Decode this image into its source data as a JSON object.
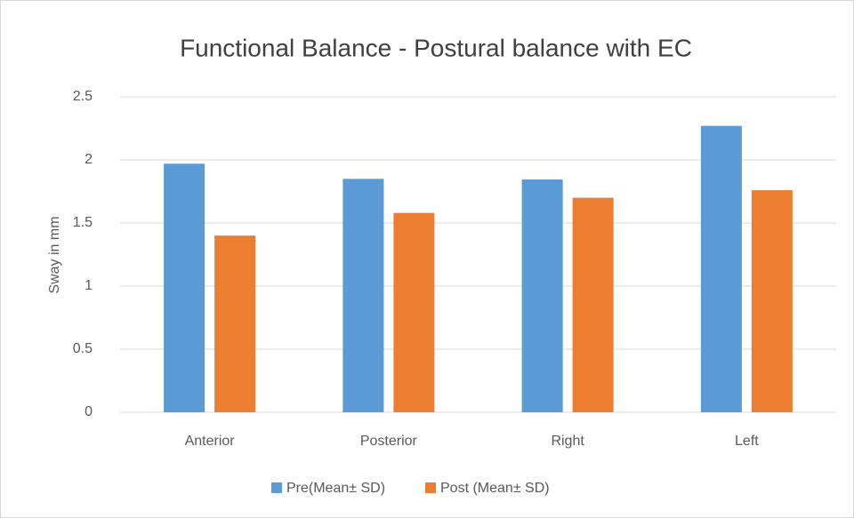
{
  "chart_data": {
    "type": "bar",
    "title": "Functional Balance - Postural balance with EC",
    "y_label": "Sway in mm",
    "categories": [
      "Anterior",
      "Posterior",
      "Right",
      "Left"
    ],
    "series": [
      {
        "name": "Pre(Mean± SD)",
        "color": "#5b9bd5",
        "values": [
          1.97,
          1.85,
          1.845,
          2.27
        ]
      },
      {
        "name": "Post (Mean± SD)",
        "color": "#ed7d31",
        "values": [
          1.4,
          1.58,
          1.7,
          1.76
        ]
      }
    ],
    "ylim": [
      0,
      2.5
    ],
    "yticks": [
      0,
      0.5,
      1,
      1.5,
      2,
      2.5
    ],
    "grid": true,
    "legend": "bottom"
  }
}
